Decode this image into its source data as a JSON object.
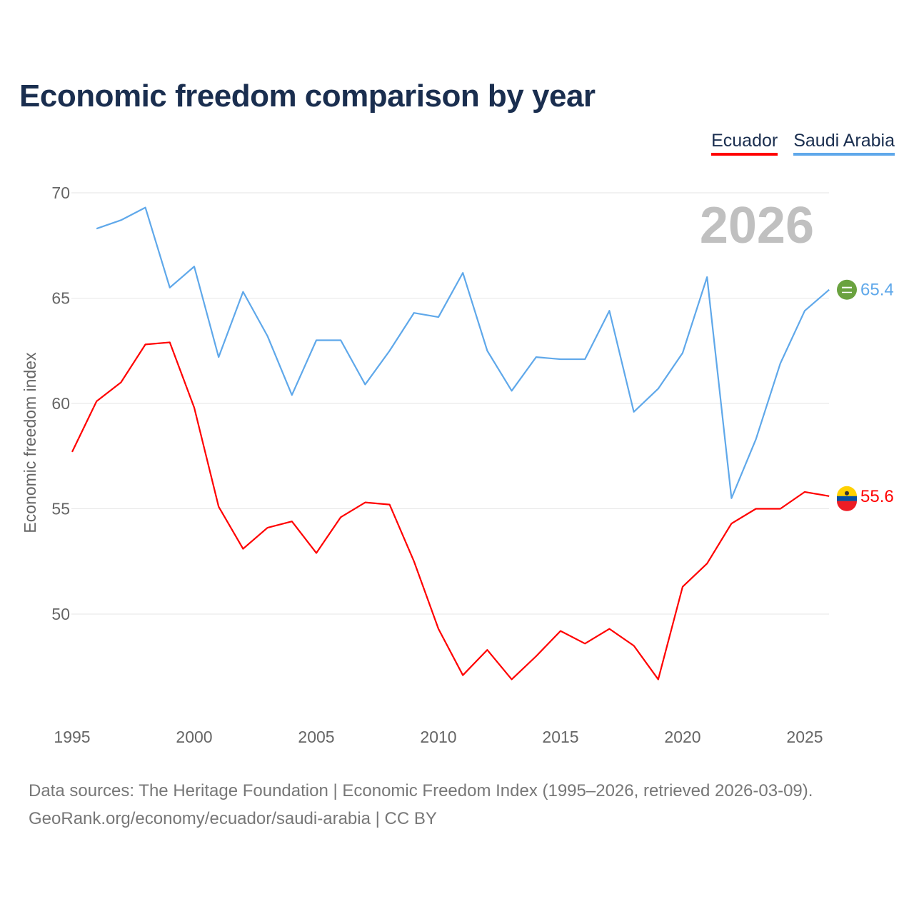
{
  "title": "Economic freedom comparison by year",
  "legend": [
    {
      "label": "Ecuador",
      "color": "#ff0000"
    },
    {
      "label": "Saudi Arabia",
      "color": "#5fa8ea"
    }
  ],
  "footer": {
    "line1": "Data sources: The Heritage Foundation | Economic Freedom Index (1995–2026, retrieved 2026-03-09).",
    "line2": "GeoRank.org/economy/ecuador/saudi-arabia | CC BY"
  },
  "chart_data": {
    "type": "line",
    "title": "Economic freedom comparison by year",
    "xlabel": "",
    "ylabel": "Economic freedom index",
    "year_watermark": "2026",
    "xlim": [
      1995,
      2026
    ],
    "ylim": [
      45.5,
      70
    ],
    "xticks": [
      "1995",
      "2000",
      "2005",
      "2010",
      "2015",
      "2020",
      "2025"
    ],
    "yticks": [
      "50",
      "55",
      "60",
      "65",
      "70"
    ],
    "grid": true,
    "legend_position": "top-right",
    "series": [
      {
        "name": "Ecuador",
        "color": "#ff0000",
        "end_label": "55.6",
        "x": [
          1995,
          1996,
          1997,
          1998,
          1999,
          2000,
          2001,
          2002,
          2003,
          2004,
          2005,
          2006,
          2007,
          2008,
          2009,
          2010,
          2011,
          2012,
          2013,
          2014,
          2015,
          2016,
          2017,
          2018,
          2019,
          2020,
          2021,
          2022,
          2023,
          2024,
          2025,
          2026
        ],
        "values": [
          57.7,
          60.1,
          61.0,
          62.8,
          62.9,
          59.8,
          55.1,
          53.1,
          54.1,
          54.4,
          52.9,
          54.6,
          55.3,
          55.2,
          52.5,
          49.3,
          47.1,
          48.3,
          46.9,
          48.0,
          49.2,
          48.6,
          49.3,
          48.5,
          46.9,
          51.3,
          52.4,
          54.3,
          55.0,
          55.0,
          55.8,
          55.6
        ]
      },
      {
        "name": "Saudi Arabia",
        "color": "#5fa8ea",
        "end_label": "65.4",
        "x": [
          1996,
          1997,
          1998,
          1999,
          2000,
          2001,
          2002,
          2003,
          2004,
          2005,
          2006,
          2007,
          2008,
          2009,
          2010,
          2011,
          2012,
          2013,
          2014,
          2015,
          2016,
          2017,
          2018,
          2019,
          2020,
          2021,
          2022,
          2023,
          2024,
          2025,
          2026
        ],
        "values": [
          68.3,
          68.7,
          69.3,
          65.5,
          66.5,
          62.2,
          65.3,
          63.2,
          60.4,
          63.0,
          63.0,
          60.9,
          62.5,
          64.3,
          64.1,
          66.2,
          62.5,
          60.6,
          62.2,
          62.1,
          62.1,
          64.4,
          59.6,
          60.7,
          62.4,
          66.0,
          55.5,
          58.3,
          61.9,
          64.4,
          65.4
        ]
      }
    ]
  }
}
